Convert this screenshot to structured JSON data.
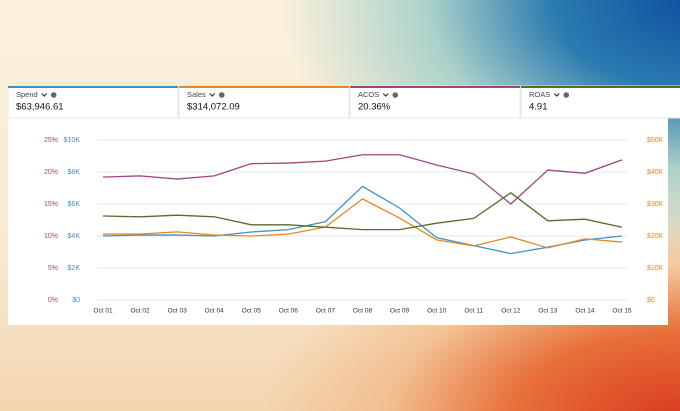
{
  "metrics": [
    {
      "label": "Spend",
      "value": "$63,946.61"
    },
    {
      "label": "Sales",
      "value": "$314,072.09"
    },
    {
      "label": "ACOS",
      "value": "20.36%"
    },
    {
      "label": "ROAS",
      "value": "4.91"
    }
  ],
  "chart_data": {
    "type": "line",
    "categories": [
      "Oct 01",
      "Oct 02",
      "Oct 03",
      "Oct 04",
      "Oct 05",
      "Oct 06",
      "Oct 07",
      "Oct 08",
      "Oct 09",
      "Oct 10",
      "Oct 11",
      "Oct 12",
      "Oct 13",
      "Oct 14",
      "Oct 15"
    ],
    "series": [
      {
        "name": "Spend",
        "color": "#3f93c4",
        "axis": "y",
        "values": [
          4000,
          4060,
          4060,
          4000,
          4250,
          4400,
          4900,
          7100,
          5750,
          3900,
          3400,
          2900,
          3300,
          3750,
          4000
        ]
      },
      {
        "name": "Sales",
        "color": "#e08a2a",
        "axis": "y2",
        "values": [
          20600,
          20600,
          21300,
          20300,
          20000,
          20600,
          22800,
          31600,
          25600,
          18800,
          16900,
          19700,
          16300,
          19100,
          18100
        ]
      },
      {
        "name": "ACOS",
        "color": "#a0457f",
        "axis": "y3",
        "values": [
          19.2,
          19.4,
          18.9,
          19.4,
          21.3,
          21.4,
          21.7,
          22.7,
          22.7,
          21.1,
          19.7,
          15.0,
          20.3,
          19.8,
          21.9
        ]
      },
      {
        "name": "ROAS",
        "color": "#5b6b2a",
        "axis": "y4",
        "values": [
          5.25,
          5.2,
          5.3,
          5.2,
          4.7,
          4.7,
          4.55,
          4.4,
          4.4,
          4.8,
          5.1,
          6.7,
          4.95,
          5.05,
          4.55
        ]
      }
    ],
    "ylim": [
      0,
      10000
    ],
    "yticks": [
      {
        "value": 0,
        "label": "$0"
      },
      {
        "value": 2000,
        "label": "$2K"
      },
      {
        "value": 4000,
        "label": "$4K"
      },
      {
        "value": 6000,
        "label": "$6K"
      },
      {
        "value": 8000,
        "label": "$8K"
      },
      {
        "value": 10000,
        "label": "$10K"
      }
    ],
    "y2lim": [
      0,
      50000
    ],
    "y2ticks": [
      {
        "value": 0,
        "label": "$0"
      },
      {
        "value": 10000,
        "label": "$10K"
      },
      {
        "value": 20000,
        "label": "$20K"
      },
      {
        "value": 30000,
        "label": "$30K"
      },
      {
        "value": 40000,
        "label": "$40K"
      },
      {
        "value": 50000,
        "label": "$50K"
      }
    ],
    "y3lim": [
      0,
      25
    ],
    "y3ticks": [
      {
        "value": 0,
        "label": "0%"
      },
      {
        "value": 5,
        "label": "5%"
      },
      {
        "value": 10,
        "label": "10%"
      },
      {
        "value": 15,
        "label": "15%"
      },
      {
        "value": 20,
        "label": "20%"
      },
      {
        "value": 25,
        "label": "25%"
      }
    ],
    "y4lim": [
      0,
      10
    ],
    "grid": true
  }
}
